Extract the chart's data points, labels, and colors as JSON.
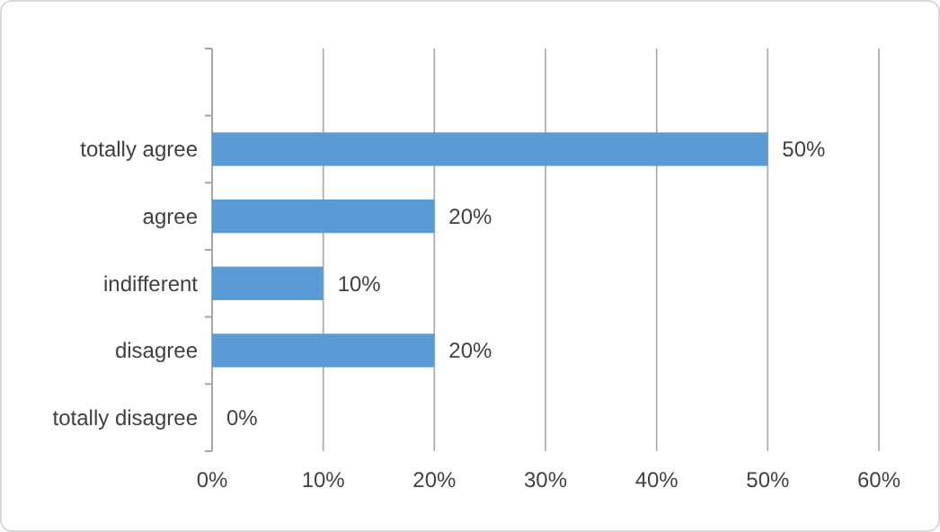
{
  "chart_data": {
    "type": "bar",
    "orientation": "horizontal",
    "categories": [
      null,
      "totally agree",
      "agree",
      "indifferent",
      "disagree",
      "totally disagree"
    ],
    "values": [
      null,
      50,
      20,
      10,
      20,
      0
    ],
    "value_labels": [
      null,
      "50%",
      "20%",
      "10%",
      "20%",
      "0%"
    ],
    "color": "#5b9bd5",
    "xlim": [
      0,
      60
    ],
    "xticks": [
      {
        "value": 0,
        "label": "0%"
      },
      {
        "value": 10,
        "label": "10%"
      },
      {
        "value": 20,
        "label": "20%"
      },
      {
        "value": 30,
        "label": "30%"
      },
      {
        "value": 40,
        "label": "40%"
      },
      {
        "value": 50,
        "label": "50%"
      },
      {
        "value": 60,
        "label": "60%"
      }
    ],
    "grid": "x"
  }
}
